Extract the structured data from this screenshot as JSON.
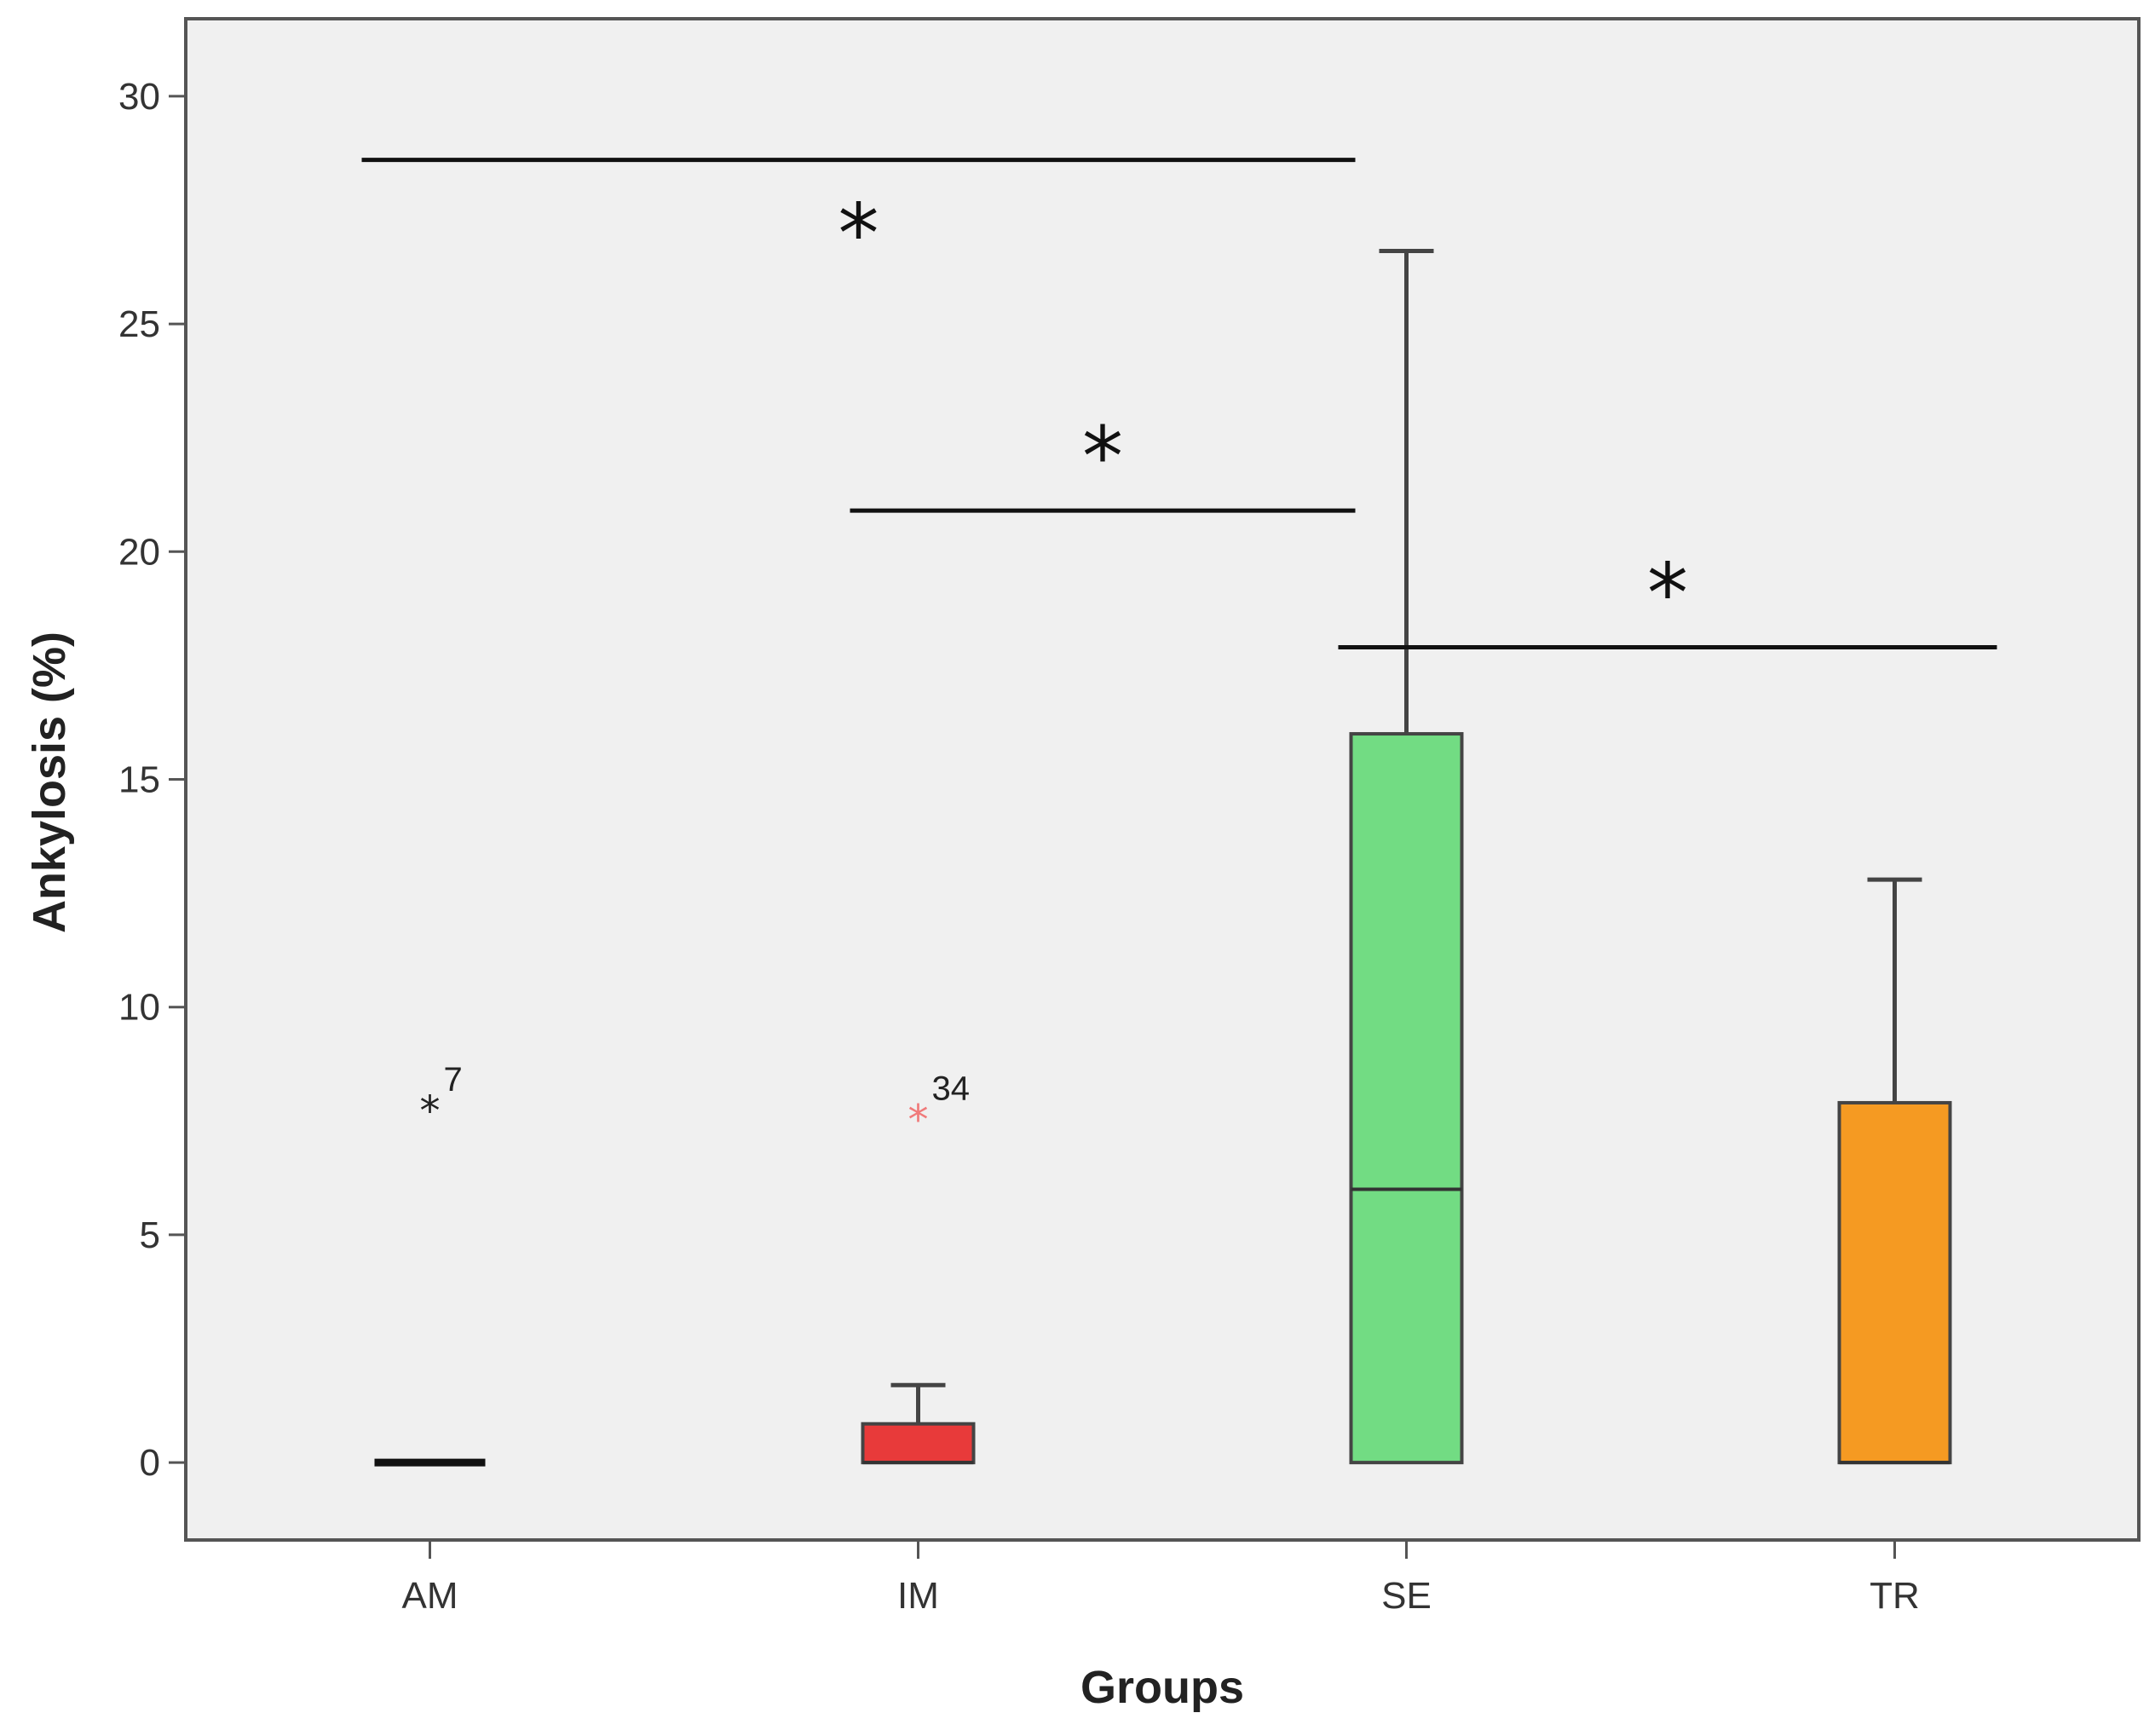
{
  "chart_data": {
    "type": "boxplot",
    "xlabel": "Groups",
    "ylabel": "Ankylosis (%)",
    "ylim": [
      -1.7,
      31.7
    ],
    "yticks": [
      0,
      5,
      10,
      15,
      20,
      25,
      30
    ],
    "grid": false,
    "categories": [
      "AM",
      "IM",
      "SE",
      "TR"
    ],
    "boxes": [
      {
        "category": "AM",
        "min": 0,
        "q1": 0,
        "median": 0,
        "q3": 0,
        "max": 0,
        "color": "#000000",
        "outliers": [
          {
            "value": 7.9,
            "label": "7",
            "marker": "*",
            "color": "#222222"
          }
        ]
      },
      {
        "category": "IM",
        "min": 0,
        "q1": 0,
        "median": 0,
        "q3": 0.85,
        "max": 1.7,
        "color": "#e83a3a",
        "outliers": [
          {
            "value": 7.7,
            "label": "34",
            "marker": "*",
            "color": "#f07a7a"
          }
        ]
      },
      {
        "category": "SE",
        "min": 0,
        "q1": 0,
        "median": 6.0,
        "q3": 16.0,
        "max": 26.6,
        "color": "#72dc83",
        "outliers": []
      },
      {
        "category": "TR",
        "min": 0,
        "q1": 0,
        "median": 0,
        "q3": 7.9,
        "max": 12.8,
        "color": "#f59a22",
        "outliers": []
      }
    ],
    "annotations": [
      {
        "type": "significance",
        "text": "*",
        "from": "AM",
        "to": "SE",
        "y": 28.6
      },
      {
        "type": "significance",
        "text": "*",
        "from": "IM",
        "to": "SE",
        "y": 20.9
      },
      {
        "type": "significance",
        "text": "*",
        "from": "SE",
        "to": "TR",
        "y": 17.9
      }
    ]
  }
}
